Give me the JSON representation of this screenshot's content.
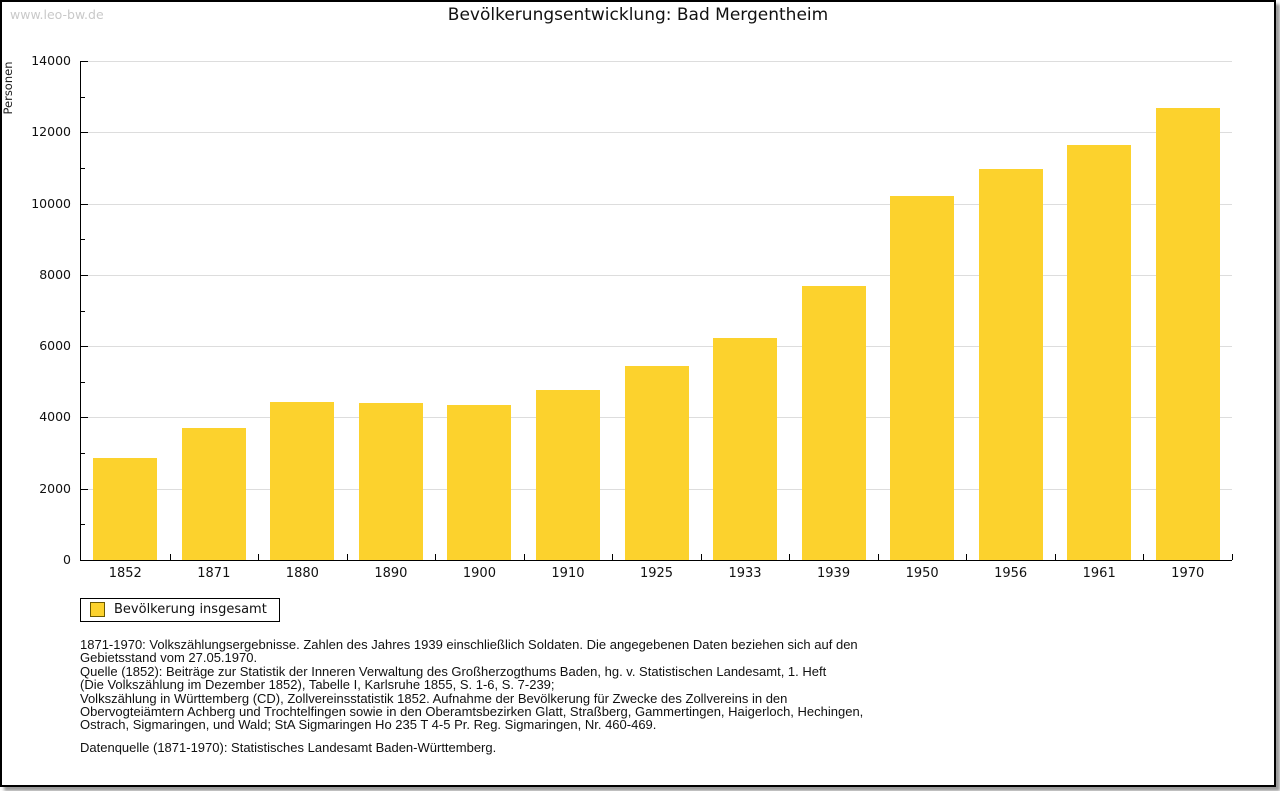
{
  "watermark": "www.leo-bw.de",
  "title": "Bevölkerungsentwicklung: Bad Mergentheim",
  "y_axis_label": "Personen",
  "legend": {
    "label": "Bevölkerung insgesamt"
  },
  "colors": {
    "bar": "#FCD22D",
    "grid": "#DDDDDD",
    "axis": "#000000",
    "watermark": "#C9C9C9"
  },
  "chart_data": {
    "type": "bar",
    "title": "Bevölkerungsentwicklung: Bad Mergentheim",
    "categories": [
      "1852",
      "1871",
      "1880",
      "1890",
      "1900",
      "1910",
      "1925",
      "1933",
      "1939",
      "1950",
      "1956",
      "1961",
      "1970"
    ],
    "values": [
      2850,
      3710,
      4440,
      4400,
      4360,
      4760,
      5430,
      6220,
      7690,
      10210,
      10960,
      11640,
      12670
    ],
    "series_name": "Bevölkerung insgesamt",
    "xlabel": "",
    "ylabel": "Personen",
    "ylim": [
      0,
      14000
    ],
    "y_tick_step": 2000,
    "y_minor_tick_step": 1000,
    "grid": true,
    "legend_position": "bottom-left",
    "bar_color": "#FCD22D"
  },
  "footer": {
    "lines": [
      "1871-1970: Volkszählungsergebnisse. Zahlen des Jahres 1939 einschließlich Soldaten. Die angegebenen Daten beziehen sich auf den",
      "Gebietsstand vom 27.05.1970.",
      "Quelle (1852): Beiträge zur Statistik der Inneren Verwaltung des Großherzogthums Baden, hg. v. Statistischen Landesamt, 1. Heft",
      "(Die Volkszählung im Dezember 1852), Tabelle I, Karlsruhe 1855, S. 1-6, S. 7-239;",
      "Volkszählung in Württemberg (CD), Zollvereinsstatistik 1852. Aufnahme der Bevölkerung für Zwecke des Zollvereins in den",
      "Obervogteiämtern Achberg und Trochtelfingen sowie in den Oberamtsbezirken Glatt, Straßberg, Gammertingen, Haigerloch, Hechingen,",
      "Ostrach, Sigmaringen, und Wald; StA Sigmaringen Ho 235 T 4-5 Pr. Reg. Sigmaringen, Nr. 460-469."
    ],
    "datasource": "Datenquelle (1871-1970): Statistisches Landesamt Baden-Württemberg."
  }
}
